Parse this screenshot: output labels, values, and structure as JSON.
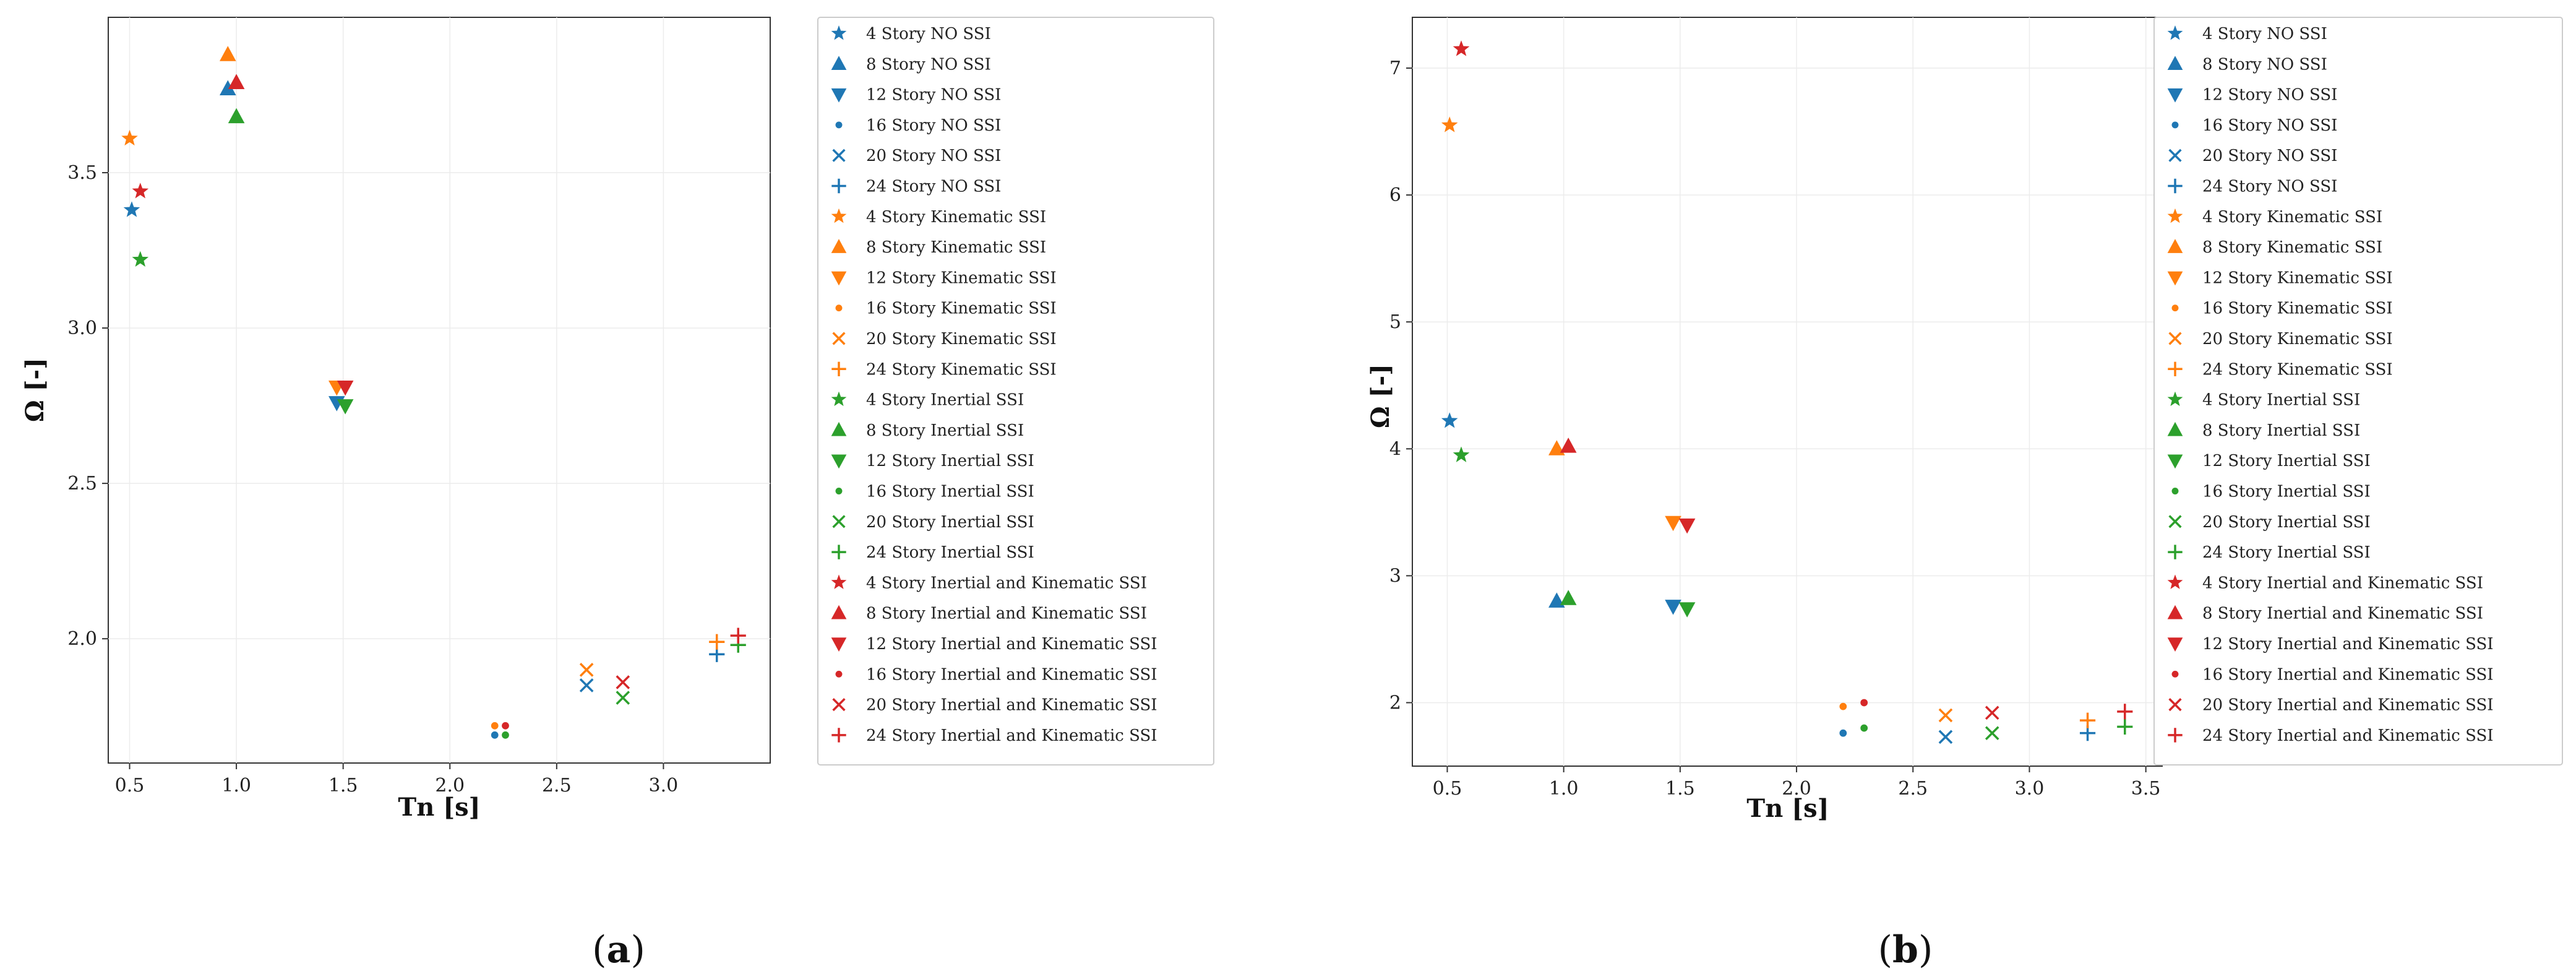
{
  "chart_data": [
    {
      "type": "scatter",
      "panel_label": "(a)",
      "panel_letter": "a",
      "xlabel": "Tn [s]",
      "ylabel": "Ω [-]",
      "xlim": [
        0.4,
        3.5
      ],
      "ylim": [
        1.6,
        4.0
      ],
      "xticks": [
        "0.5",
        "1.0",
        "1.5",
        "2.0",
        "2.5",
        "3.0"
      ],
      "yticks": [
        "2.0",
        "2.5",
        "3.0",
        "3.5"
      ],
      "grid": true,
      "legend_position": "right-outside",
      "series": [
        {
          "name": "4 Story NO SSI",
          "color": "#1f77b4",
          "marker": "star",
          "points": [
            [
              0.51,
              3.38
            ]
          ]
        },
        {
          "name": "8 Story NO SSI",
          "color": "#1f77b4",
          "marker": "triangle-up",
          "points": [
            [
              0.96,
              3.77
            ]
          ]
        },
        {
          "name": "12 Story NO SSI",
          "color": "#1f77b4",
          "marker": "triangle-down",
          "points": [
            [
              1.47,
              2.76
            ]
          ]
        },
        {
          "name": "16 Story NO SSI",
          "color": "#1f77b4",
          "marker": "dot",
          "points": [
            [
              2.21,
              1.69
            ]
          ]
        },
        {
          "name": "20 Story NO SSI",
          "color": "#1f77b4",
          "marker": "x",
          "points": [
            [
              2.64,
              1.85
            ]
          ]
        },
        {
          "name": "24 Story NO SSI",
          "color": "#1f77b4",
          "marker": "plus",
          "points": [
            [
              3.25,
              1.95
            ]
          ]
        },
        {
          "name": "4 Story Kinematic SSI",
          "color": "#ff7f0e",
          "marker": "star",
          "points": [
            [
              0.5,
              3.61
            ]
          ]
        },
        {
          "name": "8 Story Kinematic SSI",
          "color": "#ff7f0e",
          "marker": "triangle-up",
          "points": [
            [
              0.96,
              3.88
            ]
          ]
        },
        {
          "name": "12 Story Kinematic SSI",
          "color": "#ff7f0e",
          "marker": "triangle-down",
          "points": [
            [
              1.47,
              2.81
            ]
          ]
        },
        {
          "name": "16 Story Kinematic SSI",
          "color": "#ff7f0e",
          "marker": "dot",
          "points": [
            [
              2.21,
              1.72
            ]
          ]
        },
        {
          "name": "20 Story Kinematic SSI",
          "color": "#ff7f0e",
          "marker": "x",
          "points": [
            [
              2.64,
              1.9
            ]
          ]
        },
        {
          "name": "24 Story Kinematic SSI",
          "color": "#ff7f0e",
          "marker": "plus",
          "points": [
            [
              3.25,
              1.99
            ]
          ]
        },
        {
          "name": "4 Story Inertial SSI",
          "color": "#2ca02c",
          "marker": "star",
          "points": [
            [
              0.55,
              3.22
            ]
          ]
        },
        {
          "name": "8 Story Inertial SSI",
          "color": "#2ca02c",
          "marker": "triangle-up",
          "points": [
            [
              1.0,
              3.68
            ]
          ]
        },
        {
          "name": "12 Story Inertial SSI",
          "color": "#2ca02c",
          "marker": "triangle-down",
          "points": [
            [
              1.51,
              2.75
            ]
          ]
        },
        {
          "name": "16 Story Inertial SSI",
          "color": "#2ca02c",
          "marker": "dot",
          "points": [
            [
              2.26,
              1.69
            ]
          ]
        },
        {
          "name": "20 Story Inertial SSI",
          "color": "#2ca02c",
          "marker": "x",
          "points": [
            [
              2.81,
              1.81
            ]
          ]
        },
        {
          "name": "24 Story Inertial SSI",
          "color": "#2ca02c",
          "marker": "plus",
          "points": [
            [
              3.35,
              1.98
            ]
          ]
        },
        {
          "name": "4 Story Inertial and Kinematic SSI",
          "color": "#d62728",
          "marker": "star",
          "points": [
            [
              0.55,
              3.44
            ]
          ]
        },
        {
          "name": "8 Story Inertial and Kinematic SSI",
          "color": "#d62728",
          "marker": "triangle-up",
          "points": [
            [
              1.0,
              3.79
            ]
          ]
        },
        {
          "name": "12 Story Inertial and Kinematic SSI",
          "color": "#d62728",
          "marker": "triangle-down",
          "points": [
            [
              1.51,
              2.81
            ]
          ]
        },
        {
          "name": "16 Story Inertial and Kinematic SSI",
          "color": "#d62728",
          "marker": "dot",
          "points": [
            [
              2.26,
              1.72
            ]
          ]
        },
        {
          "name": "20 Story Inertial and Kinematic SSI",
          "color": "#d62728",
          "marker": "x",
          "points": [
            [
              2.81,
              1.86
            ]
          ]
        },
        {
          "name": "24 Story Inertial and Kinematic SSI",
          "color": "#d62728",
          "marker": "plus",
          "points": [
            [
              3.35,
              2.01
            ]
          ]
        }
      ]
    },
    {
      "type": "scatter",
      "panel_label": "(b)",
      "panel_letter": "b",
      "xlabel": "Tn [s]",
      "ylabel": "Ω [-]",
      "xlim": [
        0.35,
        3.57
      ],
      "ylim": [
        1.5,
        7.4
      ],
      "xticks": [
        "0.5",
        "1.0",
        "1.5",
        "2.0",
        "2.5",
        "3.0",
        "3.5"
      ],
      "yticks": [
        "2",
        "3",
        "4",
        "5",
        "6",
        "7"
      ],
      "grid": true,
      "legend_position": "right-outside",
      "series": [
        {
          "name": "4 Story NO SSI",
          "color": "#1f77b4",
          "marker": "star",
          "points": [
            [
              0.51,
              4.22
            ]
          ]
        },
        {
          "name": "8 Story NO SSI",
          "color": "#1f77b4",
          "marker": "triangle-up",
          "points": [
            [
              0.97,
              2.8
            ]
          ]
        },
        {
          "name": "12 Story NO SSI",
          "color": "#1f77b4",
          "marker": "triangle-down",
          "points": [
            [
              1.47,
              2.76
            ]
          ]
        },
        {
          "name": "16 Story NO SSI",
          "color": "#1f77b4",
          "marker": "dot",
          "points": [
            [
              2.2,
              1.76
            ]
          ]
        },
        {
          "name": "20 Story NO SSI",
          "color": "#1f77b4",
          "marker": "x",
          "points": [
            [
              2.64,
              1.73
            ]
          ]
        },
        {
          "name": "24 Story NO SSI",
          "color": "#1f77b4",
          "marker": "plus",
          "points": [
            [
              3.25,
              1.76
            ]
          ]
        },
        {
          "name": "4 Story Kinematic SSI",
          "color": "#ff7f0e",
          "marker": "star",
          "points": [
            [
              0.51,
              6.55
            ]
          ]
        },
        {
          "name": "8 Story Kinematic SSI",
          "color": "#ff7f0e",
          "marker": "triangle-up",
          "points": [
            [
              0.97,
              4.0
            ]
          ]
        },
        {
          "name": "12 Story Kinematic SSI",
          "color": "#ff7f0e",
          "marker": "triangle-down",
          "points": [
            [
              1.47,
              3.42
            ]
          ]
        },
        {
          "name": "16 Story Kinematic SSI",
          "color": "#ff7f0e",
          "marker": "dot",
          "points": [
            [
              2.2,
              1.97
            ]
          ]
        },
        {
          "name": "20 Story Kinematic SSI",
          "color": "#ff7f0e",
          "marker": "x",
          "points": [
            [
              2.64,
              1.9
            ]
          ]
        },
        {
          "name": "24 Story Kinematic SSI",
          "color": "#ff7f0e",
          "marker": "plus",
          "points": [
            [
              3.25,
              1.86
            ]
          ]
        },
        {
          "name": "4 Story Inertial SSI",
          "color": "#2ca02c",
          "marker": "star",
          "points": [
            [
              0.56,
              3.95
            ]
          ]
        },
        {
          "name": "8 Story Inertial SSI",
          "color": "#2ca02c",
          "marker": "triangle-up",
          "points": [
            [
              1.02,
              2.82
            ]
          ]
        },
        {
          "name": "12 Story Inertial SSI",
          "color": "#2ca02c",
          "marker": "triangle-down",
          "points": [
            [
              1.53,
              2.74
            ]
          ]
        },
        {
          "name": "16 Story Inertial SSI",
          "color": "#2ca02c",
          "marker": "dot",
          "points": [
            [
              2.29,
              1.8
            ]
          ]
        },
        {
          "name": "20 Story Inertial SSI",
          "color": "#2ca02c",
          "marker": "x",
          "points": [
            [
              2.84,
              1.76
            ]
          ]
        },
        {
          "name": "24 Story Inertial SSI",
          "color": "#2ca02c",
          "marker": "plus",
          "points": [
            [
              3.41,
              1.81
            ]
          ]
        },
        {
          "name": "4 Story Inertial and Kinematic SSI",
          "color": "#d62728",
          "marker": "star",
          "points": [
            [
              0.56,
              7.15
            ]
          ]
        },
        {
          "name": "8 Story Inertial and Kinematic SSI",
          "color": "#d62728",
          "marker": "triangle-up",
          "points": [
            [
              1.02,
              4.02
            ]
          ]
        },
        {
          "name": "12 Story Inertial and Kinematic SSI",
          "color": "#d62728",
          "marker": "triangle-down",
          "points": [
            [
              1.53,
              3.4
            ]
          ]
        },
        {
          "name": "16 Story Inertial and Kinematic SSI",
          "color": "#d62728",
          "marker": "dot",
          "points": [
            [
              2.29,
              2.0
            ]
          ]
        },
        {
          "name": "20 Story Inertial and Kinematic SSI",
          "color": "#d62728",
          "marker": "x",
          "points": [
            [
              2.84,
              1.92
            ]
          ]
        },
        {
          "name": "24 Story Inertial and Kinematic SSI",
          "color": "#d62728",
          "marker": "plus",
          "points": [
            [
              3.41,
              1.93
            ]
          ]
        }
      ]
    }
  ]
}
